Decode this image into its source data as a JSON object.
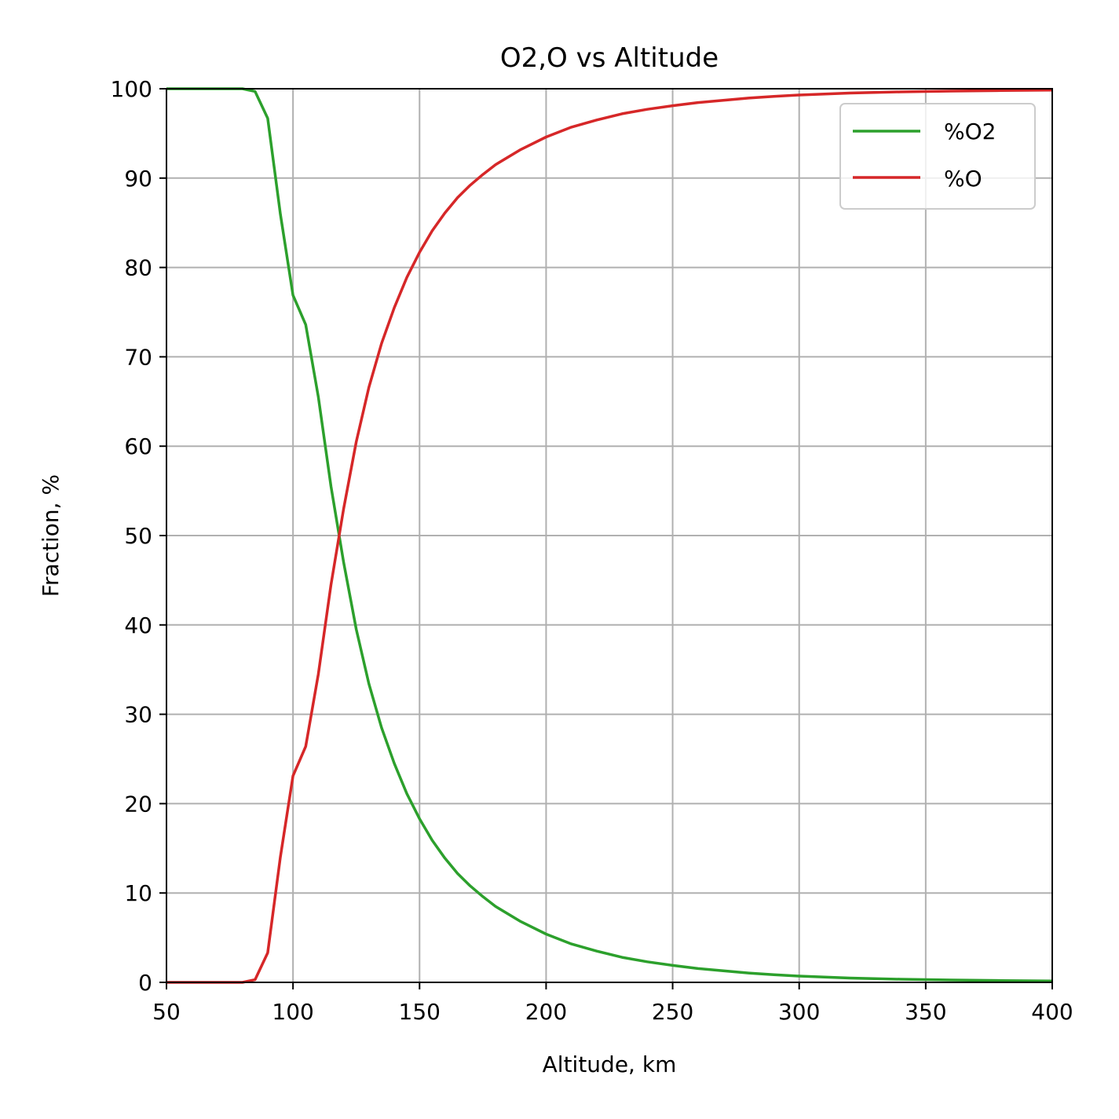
{
  "chart_data": {
    "type": "line",
    "title": "O2,O vs Altitude",
    "xlabel": "Altitude, km",
    "ylabel": "Fraction, %",
    "xlim": [
      50,
      400
    ],
    "ylim": [
      0,
      100
    ],
    "xticks": [
      50,
      100,
      150,
      200,
      250,
      300,
      350,
      400
    ],
    "yticks": [
      0,
      10,
      20,
      30,
      40,
      50,
      60,
      70,
      80,
      90,
      100
    ],
    "grid": true,
    "legend": "top-right",
    "series": [
      {
        "name": "%O2",
        "color": "#2ca02c",
        "x": [
          50,
          60,
          70,
          80,
          85,
          90,
          95,
          100,
          105,
          110,
          115,
          120,
          125,
          130,
          135,
          140,
          145,
          150,
          155,
          160,
          165,
          170,
          175,
          180,
          190,
          200,
          210,
          220,
          230,
          240,
          250,
          260,
          270,
          280,
          290,
          300,
          320,
          340,
          360,
          380,
          400
        ],
        "y": [
          100,
          100,
          100,
          100,
          99.7,
          96.7,
          86.0,
          76.9,
          73.6,
          65.5,
          55.5,
          47.0,
          39.5,
          33.4,
          28.5,
          24.5,
          21.1,
          18.3,
          15.9,
          13.9,
          12.2,
          10.8,
          9.6,
          8.5,
          6.8,
          5.4,
          4.3,
          3.5,
          2.8,
          2.3,
          1.9,
          1.55,
          1.3,
          1.05,
          0.85,
          0.7,
          0.48,
          0.35,
          0.26,
          0.2,
          0.15
        ]
      },
      {
        "name": "%O",
        "color": "#d62728",
        "x": [
          50,
          60,
          70,
          80,
          85,
          90,
          95,
          100,
          105,
          110,
          115,
          120,
          125,
          130,
          135,
          140,
          145,
          150,
          155,
          160,
          165,
          170,
          175,
          180,
          190,
          200,
          210,
          220,
          230,
          240,
          250,
          260,
          270,
          280,
          290,
          300,
          320,
          340,
          360,
          380,
          400
        ],
        "y": [
          0,
          0,
          0,
          0,
          0.3,
          3.3,
          14.0,
          23.1,
          26.4,
          34.5,
          44.5,
          53.0,
          60.5,
          66.6,
          71.5,
          75.5,
          78.9,
          81.7,
          84.1,
          86.1,
          87.8,
          89.2,
          90.4,
          91.5,
          93.2,
          94.6,
          95.7,
          96.5,
          97.2,
          97.7,
          98.1,
          98.45,
          98.7,
          98.95,
          99.15,
          99.3,
          99.52,
          99.65,
          99.74,
          99.8,
          99.85
        ]
      }
    ]
  }
}
